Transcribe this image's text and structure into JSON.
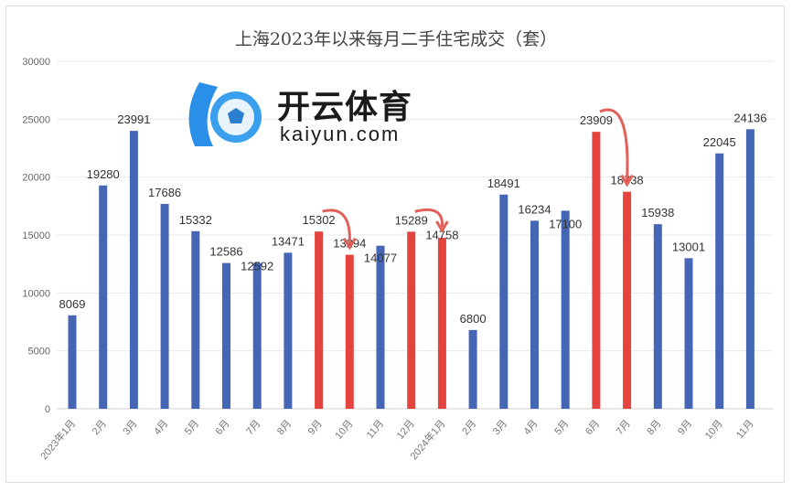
{
  "chart_data": {
    "type": "bar",
    "title": "上海2023年以来每月二手住宅成交（套）",
    "xlabel": "",
    "ylabel": "",
    "ylim": [
      0,
      30000
    ],
    "yticks": [
      0,
      5000,
      10000,
      15000,
      20000,
      25000,
      30000
    ],
    "grid": true,
    "categories": [
      "2023年1月",
      "2月",
      "3月",
      "4月",
      "5月",
      "6月",
      "7月",
      "8月",
      "9月",
      "10月",
      "11月",
      "12月",
      "2024年1月",
      "2月",
      "3月",
      "4月",
      "5月",
      "6月",
      "7月",
      "8月",
      "9月",
      "10月",
      "11月"
    ],
    "values": [
      8069,
      19280,
      23991,
      17686,
      15332,
      12586,
      12592,
      13471,
      15302,
      13294,
      14077,
      15289,
      14758,
      6800,
      18491,
      16234,
      17100,
      23909,
      18738,
      15938,
      13001,
      22045,
      24136
    ],
    "highlighted": [
      8,
      9,
      11,
      12,
      17,
      18
    ],
    "colors": {
      "normal": "#4466b4",
      "highlight": "#e5443e",
      "arrow": "#e2605a"
    },
    "annotations": [
      {
        "type": "arrow",
        "from": 8,
        "to": 9
      },
      {
        "type": "arrow",
        "from": 11,
        "to": 12
      },
      {
        "type": "arrow",
        "from": 17,
        "to": 18
      }
    ]
  },
  "watermark": {
    "brand": "开云体育",
    "domain": "kaiyun.com"
  }
}
